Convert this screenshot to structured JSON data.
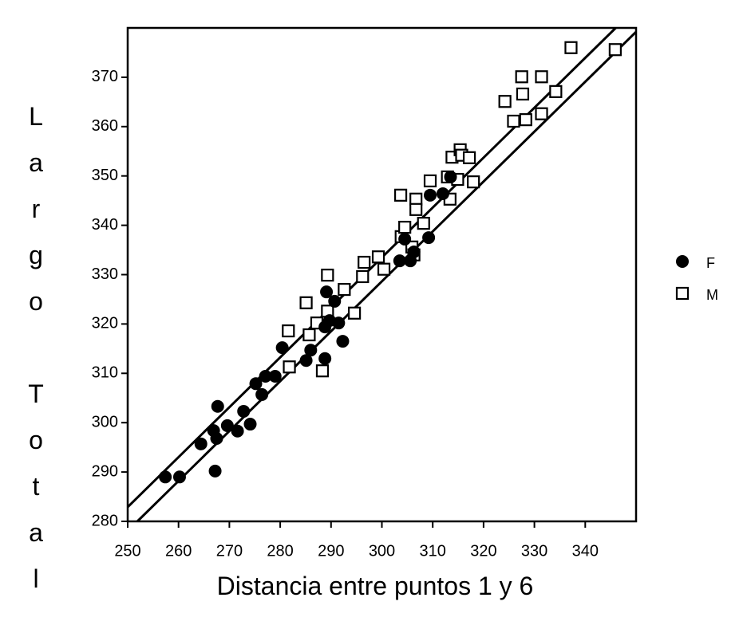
{
  "chart_data": {
    "type": "scatter",
    "xlabel": "Distancia entre puntos 1 y 6",
    "ylabel": "Largo Total",
    "xlim": [
      250,
      350
    ],
    "ylim": [
      280,
      380
    ],
    "xticks": [
      250,
      260,
      270,
      280,
      290,
      300,
      310,
      320,
      330,
      340
    ],
    "yticks": [
      280,
      290,
      300,
      310,
      320,
      330,
      340,
      350,
      360,
      370
    ],
    "legend": "right",
    "series": [
      {
        "name": "F",
        "color": "#000000",
        "marker": "circle",
        "x": [
          257.4,
          260.2,
          264.4,
          267.2,
          267.7,
          266.9,
          267.5,
          269.6,
          271.6,
          272.8,
          274.1,
          275.2,
          276.4,
          277.1,
          279.0,
          280.4,
          285.1,
          286.0,
          288.8,
          289.1,
          288.8,
          289.7,
          290.7,
          291.5,
          292.3,
          303.5,
          304.5,
          305.6,
          306.3,
          309.2,
          309.5,
          312.0,
          313.5
        ],
        "y": [
          289.0,
          289.0,
          295.7,
          290.2,
          303.3,
          298.4,
          296.8,
          299.4,
          298.3,
          302.3,
          299.7,
          307.9,
          305.7,
          309.4,
          309.4,
          315.2,
          312.6,
          314.7,
          313.0,
          326.5,
          319.4,
          320.7,
          324.6,
          320.2,
          316.5,
          332.8,
          337.2,
          332.8,
          334.6,
          337.5,
          346.1,
          346.4,
          349.8
        ]
      },
      {
        "name": "M",
        "color": "#000000",
        "marker": "square",
        "x": [
          281.6,
          281.8,
          285.1,
          285.7,
          287.2,
          288.3,
          289.3,
          289.3,
          292.6,
          294.6,
          296.2,
          296.5,
          299.3,
          300.4,
          303.7,
          303.8,
          304.5,
          305.9,
          306.3,
          306.7,
          306.7,
          308.2,
          309.5,
          312.9,
          313.4,
          313.8,
          314.9,
          315.4,
          315.7,
          317.2,
          318.0,
          324.2,
          325.9,
          327.5,
          327.7,
          328.3,
          331.4,
          331.4,
          334.2,
          337.2,
          345.9
        ],
        "y": [
          318.6,
          311.3,
          324.3,
          317.8,
          320.2,
          310.5,
          329.9,
          322.6,
          327.0,
          322.2,
          329.6,
          332.5,
          333.6,
          331.1,
          346.1,
          337.7,
          339.6,
          335.6,
          334.0,
          345.3,
          343.2,
          340.4,
          349.0,
          349.8,
          345.3,
          353.8,
          349.3,
          355.3,
          354.2,
          353.7,
          348.8,
          365.1,
          361.1,
          370.1,
          366.6,
          361.4,
          370.1,
          362.6,
          367.1,
          376.0,
          375.6
        ]
      }
    ],
    "fit_lines": [
      {
        "x": [
          250,
          346
        ],
        "y": [
          282.9,
          380
        ]
      },
      {
        "x": [
          251.9,
          350
        ],
        "y": [
          280,
          379.2
        ]
      }
    ]
  }
}
